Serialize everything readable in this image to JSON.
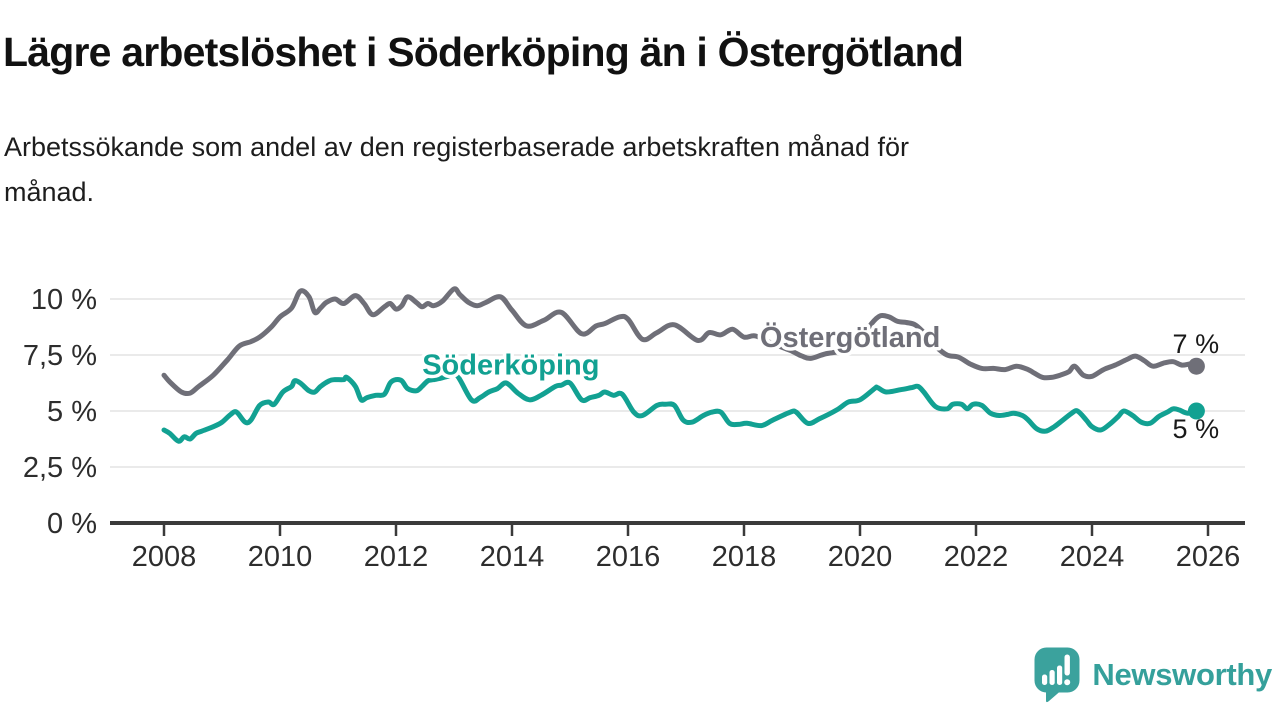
{
  "header": {
    "title": "Lägre arbetslöshet i Söderköping än i Östergötland",
    "subtitle_line1": "Arbetssökande som andel av den registerbaserade arbetskraften månad för",
    "subtitle_line2": "månad."
  },
  "colors": {
    "soderkoping_teal": "#12a192",
    "ostergotland_gray": "#6f6f78",
    "axis": "#3a3a3a",
    "grid": "#e4e4e4",
    "tick_text": "#2d2d2d",
    "value_text": "#191919",
    "brand_teal": "#3ba29d"
  },
  "chart_data": {
    "type": "line",
    "title": "Lägre arbetslöshet i Söderköping än i Östergötland",
    "subtitle": "Arbetssökande som andel av den registerbaserade arbetskraften månad för månad.",
    "xlabel": "",
    "ylabel": "",
    "x_unit": "decimal_year",
    "xlim": [
      2007.1,
      2026.6
    ],
    "ylim": [
      0,
      11.2
    ],
    "grid": true,
    "legend": "inline-labels",
    "x_ticks": [
      {
        "value": 2008,
        "label": "2008"
      },
      {
        "value": 2010,
        "label": "2010"
      },
      {
        "value": 2012,
        "label": "2012"
      },
      {
        "value": 2014,
        "label": "2014"
      },
      {
        "value": 2016,
        "label": "2016"
      },
      {
        "value": 2018,
        "label": "2018"
      },
      {
        "value": 2020,
        "label": "2020"
      },
      {
        "value": 2022,
        "label": "2022"
      },
      {
        "value": 2024,
        "label": "2024"
      },
      {
        "value": 2026,
        "label": "2026"
      }
    ],
    "y_ticks": [
      {
        "value": 10,
        "label": "10 %"
      },
      {
        "value": 7.5,
        "label": "7,5 %"
      },
      {
        "value": 5,
        "label": "5 %"
      },
      {
        "value": 2.5,
        "label": "2,5 %"
      },
      {
        "value": 0,
        "label": "0 %"
      }
    ],
    "series": [
      {
        "name": "Östergötland",
        "slug": "ostergotland",
        "color": "#6f6f78",
        "end_dot": true,
        "end_value_label": "7 %",
        "points": [
          [
            2008.0,
            6.6
          ],
          [
            2008.1,
            6.3
          ],
          [
            2008.3,
            5.85
          ],
          [
            2008.45,
            5.8
          ],
          [
            2008.6,
            6.1
          ],
          [
            2008.85,
            6.6
          ],
          [
            2009.1,
            7.3
          ],
          [
            2009.3,
            7.9
          ],
          [
            2009.5,
            8.1
          ],
          [
            2009.65,
            8.3
          ],
          [
            2009.85,
            8.75
          ],
          [
            2010.0,
            9.2
          ],
          [
            2010.2,
            9.6
          ],
          [
            2010.35,
            10.35
          ],
          [
            2010.5,
            10.1
          ],
          [
            2010.6,
            9.4
          ],
          [
            2010.7,
            9.6
          ],
          [
            2010.8,
            9.85
          ],
          [
            2010.95,
            10.0
          ],
          [
            2011.1,
            9.8
          ],
          [
            2011.3,
            10.15
          ],
          [
            2011.45,
            9.8
          ],
          [
            2011.6,
            9.3
          ],
          [
            2011.8,
            9.65
          ],
          [
            2011.9,
            9.8
          ],
          [
            2012.0,
            9.55
          ],
          [
            2012.1,
            9.7
          ],
          [
            2012.2,
            10.1
          ],
          [
            2012.35,
            9.85
          ],
          [
            2012.45,
            9.65
          ],
          [
            2012.55,
            9.8
          ],
          [
            2012.65,
            9.7
          ],
          [
            2012.8,
            9.9
          ],
          [
            2013.0,
            10.45
          ],
          [
            2013.1,
            10.2
          ],
          [
            2013.25,
            9.85
          ],
          [
            2013.4,
            9.7
          ],
          [
            2013.55,
            9.85
          ],
          [
            2013.8,
            10.1
          ],
          [
            2014.0,
            9.5
          ],
          [
            2014.25,
            8.8
          ],
          [
            2014.55,
            9.05
          ],
          [
            2014.85,
            9.4
          ],
          [
            2015.2,
            8.45
          ],
          [
            2015.45,
            8.8
          ],
          [
            2015.6,
            8.9
          ],
          [
            2015.85,
            9.2
          ],
          [
            2016.0,
            9.1
          ],
          [
            2016.25,
            8.2
          ],
          [
            2016.5,
            8.5
          ],
          [
            2016.8,
            8.85
          ],
          [
            2017.2,
            8.15
          ],
          [
            2017.4,
            8.5
          ],
          [
            2017.6,
            8.4
          ],
          [
            2017.8,
            8.65
          ],
          [
            2018.0,
            8.3
          ],
          [
            2018.2,
            8.35
          ],
          [
            2018.5,
            8.0
          ],
          [
            2018.8,
            7.7
          ],
          [
            2019.0,
            7.45
          ],
          [
            2019.15,
            7.35
          ],
          [
            2019.4,
            7.55
          ],
          [
            2019.7,
            7.7
          ],
          [
            2020.0,
            8.1
          ],
          [
            2020.2,
            8.9
          ],
          [
            2020.35,
            9.25
          ],
          [
            2020.5,
            9.2
          ],
          [
            2020.65,
            9.0
          ],
          [
            2020.8,
            8.95
          ],
          [
            2020.95,
            8.85
          ],
          [
            2021.1,
            8.5
          ],
          [
            2021.3,
            7.9
          ],
          [
            2021.5,
            7.5
          ],
          [
            2021.7,
            7.4
          ],
          [
            2021.9,
            7.1
          ],
          [
            2022.1,
            6.9
          ],
          [
            2022.3,
            6.9
          ],
          [
            2022.5,
            6.85
          ],
          [
            2022.7,
            7.0
          ],
          [
            2022.9,
            6.85
          ],
          [
            2023.0,
            6.7
          ],
          [
            2023.15,
            6.5
          ],
          [
            2023.3,
            6.5
          ],
          [
            2023.45,
            6.6
          ],
          [
            2023.6,
            6.75
          ],
          [
            2023.7,
            7.0
          ],
          [
            2023.85,
            6.6
          ],
          [
            2024.0,
            6.55
          ],
          [
            2024.2,
            6.85
          ],
          [
            2024.4,
            7.05
          ],
          [
            2024.6,
            7.3
          ],
          [
            2024.75,
            7.45
          ],
          [
            2024.9,
            7.25
          ],
          [
            2025.05,
            7.0
          ],
          [
            2025.25,
            7.15
          ],
          [
            2025.4,
            7.2
          ],
          [
            2025.55,
            7.05
          ],
          [
            2025.7,
            7.1
          ],
          [
            2025.8,
            7.0
          ]
        ]
      },
      {
        "name": "Söderköping",
        "slug": "soderkoping",
        "color": "#12a192",
        "end_dot": true,
        "end_value_label": "5 %",
        "points": [
          [
            2008.0,
            4.15
          ],
          [
            2008.1,
            4.0
          ],
          [
            2008.25,
            3.65
          ],
          [
            2008.35,
            3.85
          ],
          [
            2008.45,
            3.75
          ],
          [
            2008.55,
            4.0
          ],
          [
            2008.65,
            4.1
          ],
          [
            2008.85,
            4.3
          ],
          [
            2009.0,
            4.5
          ],
          [
            2009.15,
            4.85
          ],
          [
            2009.25,
            4.95
          ],
          [
            2009.4,
            4.5
          ],
          [
            2009.5,
            4.6
          ],
          [
            2009.65,
            5.25
          ],
          [
            2009.8,
            5.4
          ],
          [
            2009.9,
            5.3
          ],
          [
            2010.05,
            5.85
          ],
          [
            2010.2,
            6.1
          ],
          [
            2010.25,
            6.35
          ],
          [
            2010.35,
            6.25
          ],
          [
            2010.5,
            5.9
          ],
          [
            2010.6,
            5.85
          ],
          [
            2010.7,
            6.1
          ],
          [
            2010.85,
            6.35
          ],
          [
            2010.95,
            6.4
          ],
          [
            2011.1,
            6.4
          ],
          [
            2011.15,
            6.5
          ],
          [
            2011.3,
            6.1
          ],
          [
            2011.4,
            5.5
          ],
          [
            2011.5,
            5.6
          ],
          [
            2011.65,
            5.7
          ],
          [
            2011.8,
            5.75
          ],
          [
            2011.9,
            6.25
          ],
          [
            2012.0,
            6.4
          ],
          [
            2012.1,
            6.35
          ],
          [
            2012.2,
            6.0
          ],
          [
            2012.35,
            5.9
          ],
          [
            2012.45,
            6.1
          ],
          [
            2012.55,
            6.35
          ],
          [
            2012.65,
            6.4
          ],
          [
            2012.75,
            6.45
          ],
          [
            2012.9,
            6.55
          ],
          [
            2013.05,
            6.6
          ],
          [
            2013.3,
            5.5
          ],
          [
            2013.45,
            5.6
          ],
          [
            2013.6,
            5.85
          ],
          [
            2013.75,
            6.0
          ],
          [
            2013.9,
            6.25
          ],
          [
            2014.1,
            5.8
          ],
          [
            2014.3,
            5.5
          ],
          [
            2014.5,
            5.7
          ],
          [
            2014.75,
            6.1
          ],
          [
            2014.85,
            6.15
          ],
          [
            2015.0,
            6.25
          ],
          [
            2015.2,
            5.5
          ],
          [
            2015.35,
            5.6
          ],
          [
            2015.5,
            5.7
          ],
          [
            2015.6,
            5.85
          ],
          [
            2015.75,
            5.7
          ],
          [
            2015.9,
            5.75
          ],
          [
            2016.1,
            4.95
          ],
          [
            2016.25,
            4.8
          ],
          [
            2016.5,
            5.25
          ],
          [
            2016.65,
            5.3
          ],
          [
            2016.8,
            5.25
          ],
          [
            2016.95,
            4.6
          ],
          [
            2017.1,
            4.5
          ],
          [
            2017.3,
            4.8
          ],
          [
            2017.45,
            4.95
          ],
          [
            2017.6,
            4.95
          ],
          [
            2017.75,
            4.45
          ],
          [
            2017.9,
            4.4
          ],
          [
            2018.05,
            4.45
          ],
          [
            2018.3,
            4.35
          ],
          [
            2018.5,
            4.6
          ],
          [
            2018.8,
            4.95
          ],
          [
            2018.9,
            4.95
          ],
          [
            2019.1,
            4.45
          ],
          [
            2019.3,
            4.65
          ],
          [
            2019.6,
            5.05
          ],
          [
            2019.8,
            5.4
          ],
          [
            2020.0,
            5.5
          ],
          [
            2020.25,
            6.0
          ],
          [
            2020.3,
            6.05
          ],
          [
            2020.45,
            5.85
          ],
          [
            2020.7,
            5.95
          ],
          [
            2020.9,
            6.05
          ],
          [
            2021.0,
            6.1
          ],
          [
            2021.1,
            5.85
          ],
          [
            2021.3,
            5.2
          ],
          [
            2021.5,
            5.1
          ],
          [
            2021.6,
            5.3
          ],
          [
            2021.75,
            5.3
          ],
          [
            2021.85,
            5.1
          ],
          [
            2021.95,
            5.3
          ],
          [
            2022.1,
            5.25
          ],
          [
            2022.25,
            4.9
          ],
          [
            2022.4,
            4.8
          ],
          [
            2022.55,
            4.85
          ],
          [
            2022.65,
            4.9
          ],
          [
            2022.8,
            4.8
          ],
          [
            2022.9,
            4.6
          ],
          [
            2023.05,
            4.2
          ],
          [
            2023.2,
            4.1
          ],
          [
            2023.35,
            4.3
          ],
          [
            2023.5,
            4.6
          ],
          [
            2023.65,
            4.9
          ],
          [
            2023.75,
            5.0
          ],
          [
            2023.9,
            4.6
          ],
          [
            2024.0,
            4.3
          ],
          [
            2024.15,
            4.15
          ],
          [
            2024.3,
            4.4
          ],
          [
            2024.45,
            4.75
          ],
          [
            2024.55,
            5.0
          ],
          [
            2024.7,
            4.8
          ],
          [
            2024.85,
            4.5
          ],
          [
            2025.0,
            4.45
          ],
          [
            2025.15,
            4.75
          ],
          [
            2025.3,
            4.95
          ],
          [
            2025.4,
            5.1
          ],
          [
            2025.5,
            5.05
          ],
          [
            2025.65,
            4.9
          ],
          [
            2025.8,
            5.0
          ]
        ]
      }
    ],
    "series_inline_labels": [
      {
        "text": "Söderköping",
        "x": 2013.98,
        "baseline_value": 6.62,
        "color": "#12a192"
      },
      {
        "text": "Östergötland",
        "x": 2019.83,
        "baseline_value": 7.85,
        "color": "#6f6f78"
      }
    ],
    "end_value_labels": [
      {
        "text": "7 %",
        "x": 2025.79,
        "baseline_value": 7.6
      },
      {
        "text": "5 %",
        "x": 2025.79,
        "baseline_value": 3.8
      }
    ]
  },
  "footer": {
    "brand": "Newsworthy",
    "logo_icon": "bar-chart-speech-bubble"
  }
}
